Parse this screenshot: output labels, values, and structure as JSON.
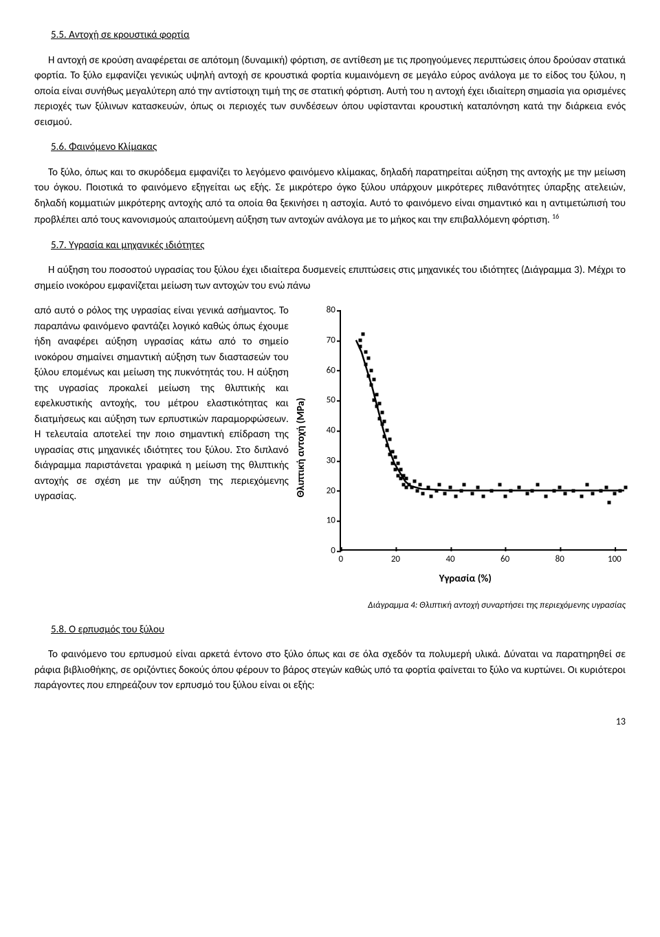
{
  "s55": {
    "heading": "5.5. Αντοχή σε κρουστικά φορτία",
    "p1": "Η αντοχή σε κρούση αναφέρεται σε απότομη (δυναμική) φόρτιση, σε αντίθεση με τις προηγούμενες περιπτώσεις όπου δρούσαν στατικά φορτία. Το ξύλο εμφανίζει γενικώς υψηλή αντοχή σε κρουστικά φορτία κυμαινόμενη σε μεγάλο εύρος ανάλογα με το είδος του ξύλου, η οποία είναι συνήθως μεγαλύ­τερη από την αντίστοιχη τιμή της σε στατική φόρτιση. Αυτή του η αντοχή έχει ιδιαίτερη σημασία για ορισμένες περιοχές των ξύλινων κατασκευών, όπως οι περιοχές των συνδέσεων όπου υφίστανται κρου­στική καταπόνηση κατά την διάρκεια ενός σεισμού."
  },
  "s56": {
    "heading": "5.6. Φαινόμενο Κλίμακας",
    "p1": "Το ξύλο, όπως και το σκυρόδεμα εμφανίζει το λεγόμενο φαινόμενο κλίμακας, δηλαδή παρατηρείται αύξηση της αντοχής με την μείωση του όγκου. Ποιοτικά το φαινόμενο εξηγείται ως εξής. Σε μικρότερο όγκο ξύλου υπάρχουν μικρότερες πιθανότητες ύπαρξης ατελειών, δηλαδή κομματιών μικρότερης αντο­χής από τα οποία θα ξεκινήσει η αστοχία. Αυτό το φαινόμενο είναι σημαντικό και η αντιμετώπισή του προβλέπει από τους κανονισμούς απαιτούμενη αύξηση των αντοχών ανάλογα με το μήκος και την επι­βαλλόμενη φόρτιση.",
    "footref": "16"
  },
  "s57": {
    "heading": "5.7. Υγρασία και μηχανικές ιδιότητες",
    "p1": "Η αύξηση του ποσοστού υγρασίας του ξύλου έχει ιδιαίτερα δυσμενείς επιπτώσεις στις μηχανικές του ιδιότητες (Διάγραμμα 3). Μέχρι το σημείο ινοκόρου εμφανίζεται μείωση των αντοχών του ενώ πάνω",
    "p2": "από αυτό ο ρόλος της υγρασίας είναι γενικά ασήμαντος. Το παραπάνω φαινόμενο φαντάζει λογικό καθώς όπως έχουμε ήδη αναφέρει αύξηση υγρασίας κάτω από το σημείο ινοκόρου σημαίνει σημαντική αύξηση των διαστασεών του ξύλου επομένως και μείωση της πυκνότητάς του. Η αύξηση της υγρασίας προκαλεί μείωση της θλιπτικής και εφελκυστικής αντοχής, του μέτρου ελαστικότητας και διατμήσεως και αύξηση των ερπυστικών παραμορφώσεων. Η τελευταία αποτελεί την ποιο σημαντική επίδραση της υγρασίας στις μηχανικές ιδιότητες του ξύλου. Στο διπλανό διάγραμμα παριστάνεται γραφικά η μείωση της θλιπτικής αντοχής σε σχέση με την αύξηση της περιεχόμενης υγρασίας."
  },
  "chart": {
    "type": "scatter",
    "ylabel": "Θλιπτική αντοχή (MPa)",
    "xlabel": "Υγρασία (%)",
    "ylim": [
      0,
      80
    ],
    "xlim": [
      0,
      105
    ],
    "yticks": [
      0,
      10,
      20,
      30,
      40,
      50,
      60,
      70,
      80
    ],
    "xticks": [
      0,
      20,
      40,
      60,
      80,
      100
    ],
    "point_color": "#000000",
    "curve_color": "#000000",
    "background": "#ffffff",
    "fontsize_ticks": 13,
    "fontsize_labels": 15,
    "curve_points": [
      [
        6,
        70
      ],
      [
        8,
        66
      ],
      [
        10,
        60
      ],
      [
        12,
        54
      ],
      [
        14,
        47
      ],
      [
        16,
        40
      ],
      [
        18,
        34
      ],
      [
        20,
        29
      ],
      [
        22,
        26
      ],
      [
        24,
        23
      ],
      [
        26,
        21.5
      ],
      [
        30,
        20.5
      ],
      [
        40,
        20
      ],
      [
        60,
        20
      ],
      [
        80,
        20
      ],
      [
        100,
        20
      ],
      [
        104,
        20
      ]
    ],
    "scatter": [
      [
        7,
        70
      ],
      [
        7,
        68
      ],
      [
        8,
        72
      ],
      [
        9,
        66
      ],
      [
        9,
        62
      ],
      [
        10,
        64
      ],
      [
        10,
        58
      ],
      [
        11,
        60
      ],
      [
        11,
        55
      ],
      [
        12,
        57
      ],
      [
        12,
        50
      ],
      [
        13,
        52
      ],
      [
        13,
        48
      ],
      [
        14,
        49
      ],
      [
        14,
        44
      ],
      [
        15,
        46
      ],
      [
        15,
        42
      ],
      [
        16,
        43
      ],
      [
        16,
        38
      ],
      [
        17,
        40
      ],
      [
        17,
        35
      ],
      [
        18,
        37
      ],
      [
        18,
        32
      ],
      [
        19,
        33
      ],
      [
        19,
        29
      ],
      [
        20,
        31
      ],
      [
        20,
        27
      ],
      [
        21,
        29
      ],
      [
        21,
        25
      ],
      [
        22,
        27
      ],
      [
        22,
        24
      ],
      [
        23,
        25
      ],
      [
        23,
        22
      ],
      [
        24,
        24
      ],
      [
        24,
        21
      ],
      [
        25,
        22
      ],
      [
        26,
        21
      ],
      [
        27,
        23
      ],
      [
        28,
        20
      ],
      [
        29,
        22
      ],
      [
        30,
        19
      ],
      [
        32,
        21
      ],
      [
        33,
        18
      ],
      [
        35,
        20
      ],
      [
        36,
        22
      ],
      [
        38,
        19
      ],
      [
        40,
        21
      ],
      [
        42,
        18
      ],
      [
        44,
        20
      ],
      [
        45,
        22
      ],
      [
        48,
        19
      ],
      [
        50,
        21
      ],
      [
        52,
        18
      ],
      [
        55,
        20
      ],
      [
        58,
        22
      ],
      [
        60,
        18
      ],
      [
        62,
        20
      ],
      [
        65,
        21
      ],
      [
        68,
        19
      ],
      [
        70,
        20
      ],
      [
        72,
        22
      ],
      [
        75,
        18
      ],
      [
        78,
        20
      ],
      [
        80,
        21
      ],
      [
        82,
        19
      ],
      [
        85,
        20
      ],
      [
        88,
        18
      ],
      [
        90,
        22
      ],
      [
        92,
        19
      ],
      [
        95,
        20
      ],
      [
        97,
        21
      ],
      [
        98,
        16
      ],
      [
        100,
        19
      ],
      [
        102,
        20
      ],
      [
        104,
        21
      ]
    ]
  },
  "caption": "Διάγραμμα 4: Θλιπτική αντοχή συναρτήσει της περιεχόμενης υγρασίας",
  "s58": {
    "heading": "5.8. Ο ερπυσμός του ξύλου",
    "p1": "Το φαινόμενο του ερπυσμού είναι αρκετά έντονο στο ξύλο όπως και σε όλα σχεδόν τα πολυμερή υ­λικά. Δύναται να παρατηρηθεί σε ράφια βιβλιοθήκης, σε οριζόντιες δοκούς όπου φέρουν το βάρος στε­γών καθώς υπό τα φορτία φαίνεται το ξύλο να κυρτώνει. Οι κυριότεροι παράγοντες που επηρεάζουν τον ερπυσμό του ξύλου είναι οι εξής:"
  },
  "page_number": "13"
}
